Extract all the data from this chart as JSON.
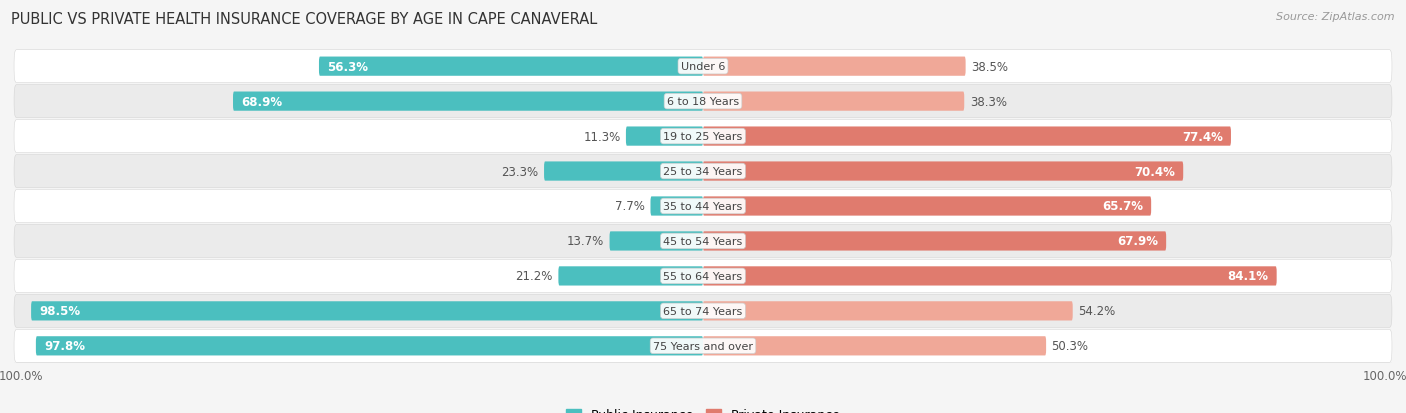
{
  "title": "PUBLIC VS PRIVATE HEALTH INSURANCE COVERAGE BY AGE IN CAPE CANAVERAL",
  "source": "Source: ZipAtlas.com",
  "categories": [
    "Under 6",
    "6 to 18 Years",
    "19 to 25 Years",
    "25 to 34 Years",
    "35 to 44 Years",
    "45 to 54 Years",
    "55 to 64 Years",
    "65 to 74 Years",
    "75 Years and over"
  ],
  "public_values": [
    56.3,
    68.9,
    11.3,
    23.3,
    7.7,
    13.7,
    21.2,
    98.5,
    97.8
  ],
  "private_values": [
    38.5,
    38.3,
    77.4,
    70.4,
    65.7,
    67.9,
    84.1,
    54.2,
    50.3
  ],
  "public_color": "#4bbfbf",
  "private_color_strong": "#e07b6e",
  "private_color_light": "#f0a898",
  "background_color": "#f5f5f5",
  "row_color_odd": "#ffffff",
  "row_color_even": "#ebebeb",
  "max_val": 100,
  "title_fontsize": 10.5,
  "label_fontsize": 8.5,
  "category_fontsize": 8.0,
  "source_fontsize": 8.0
}
